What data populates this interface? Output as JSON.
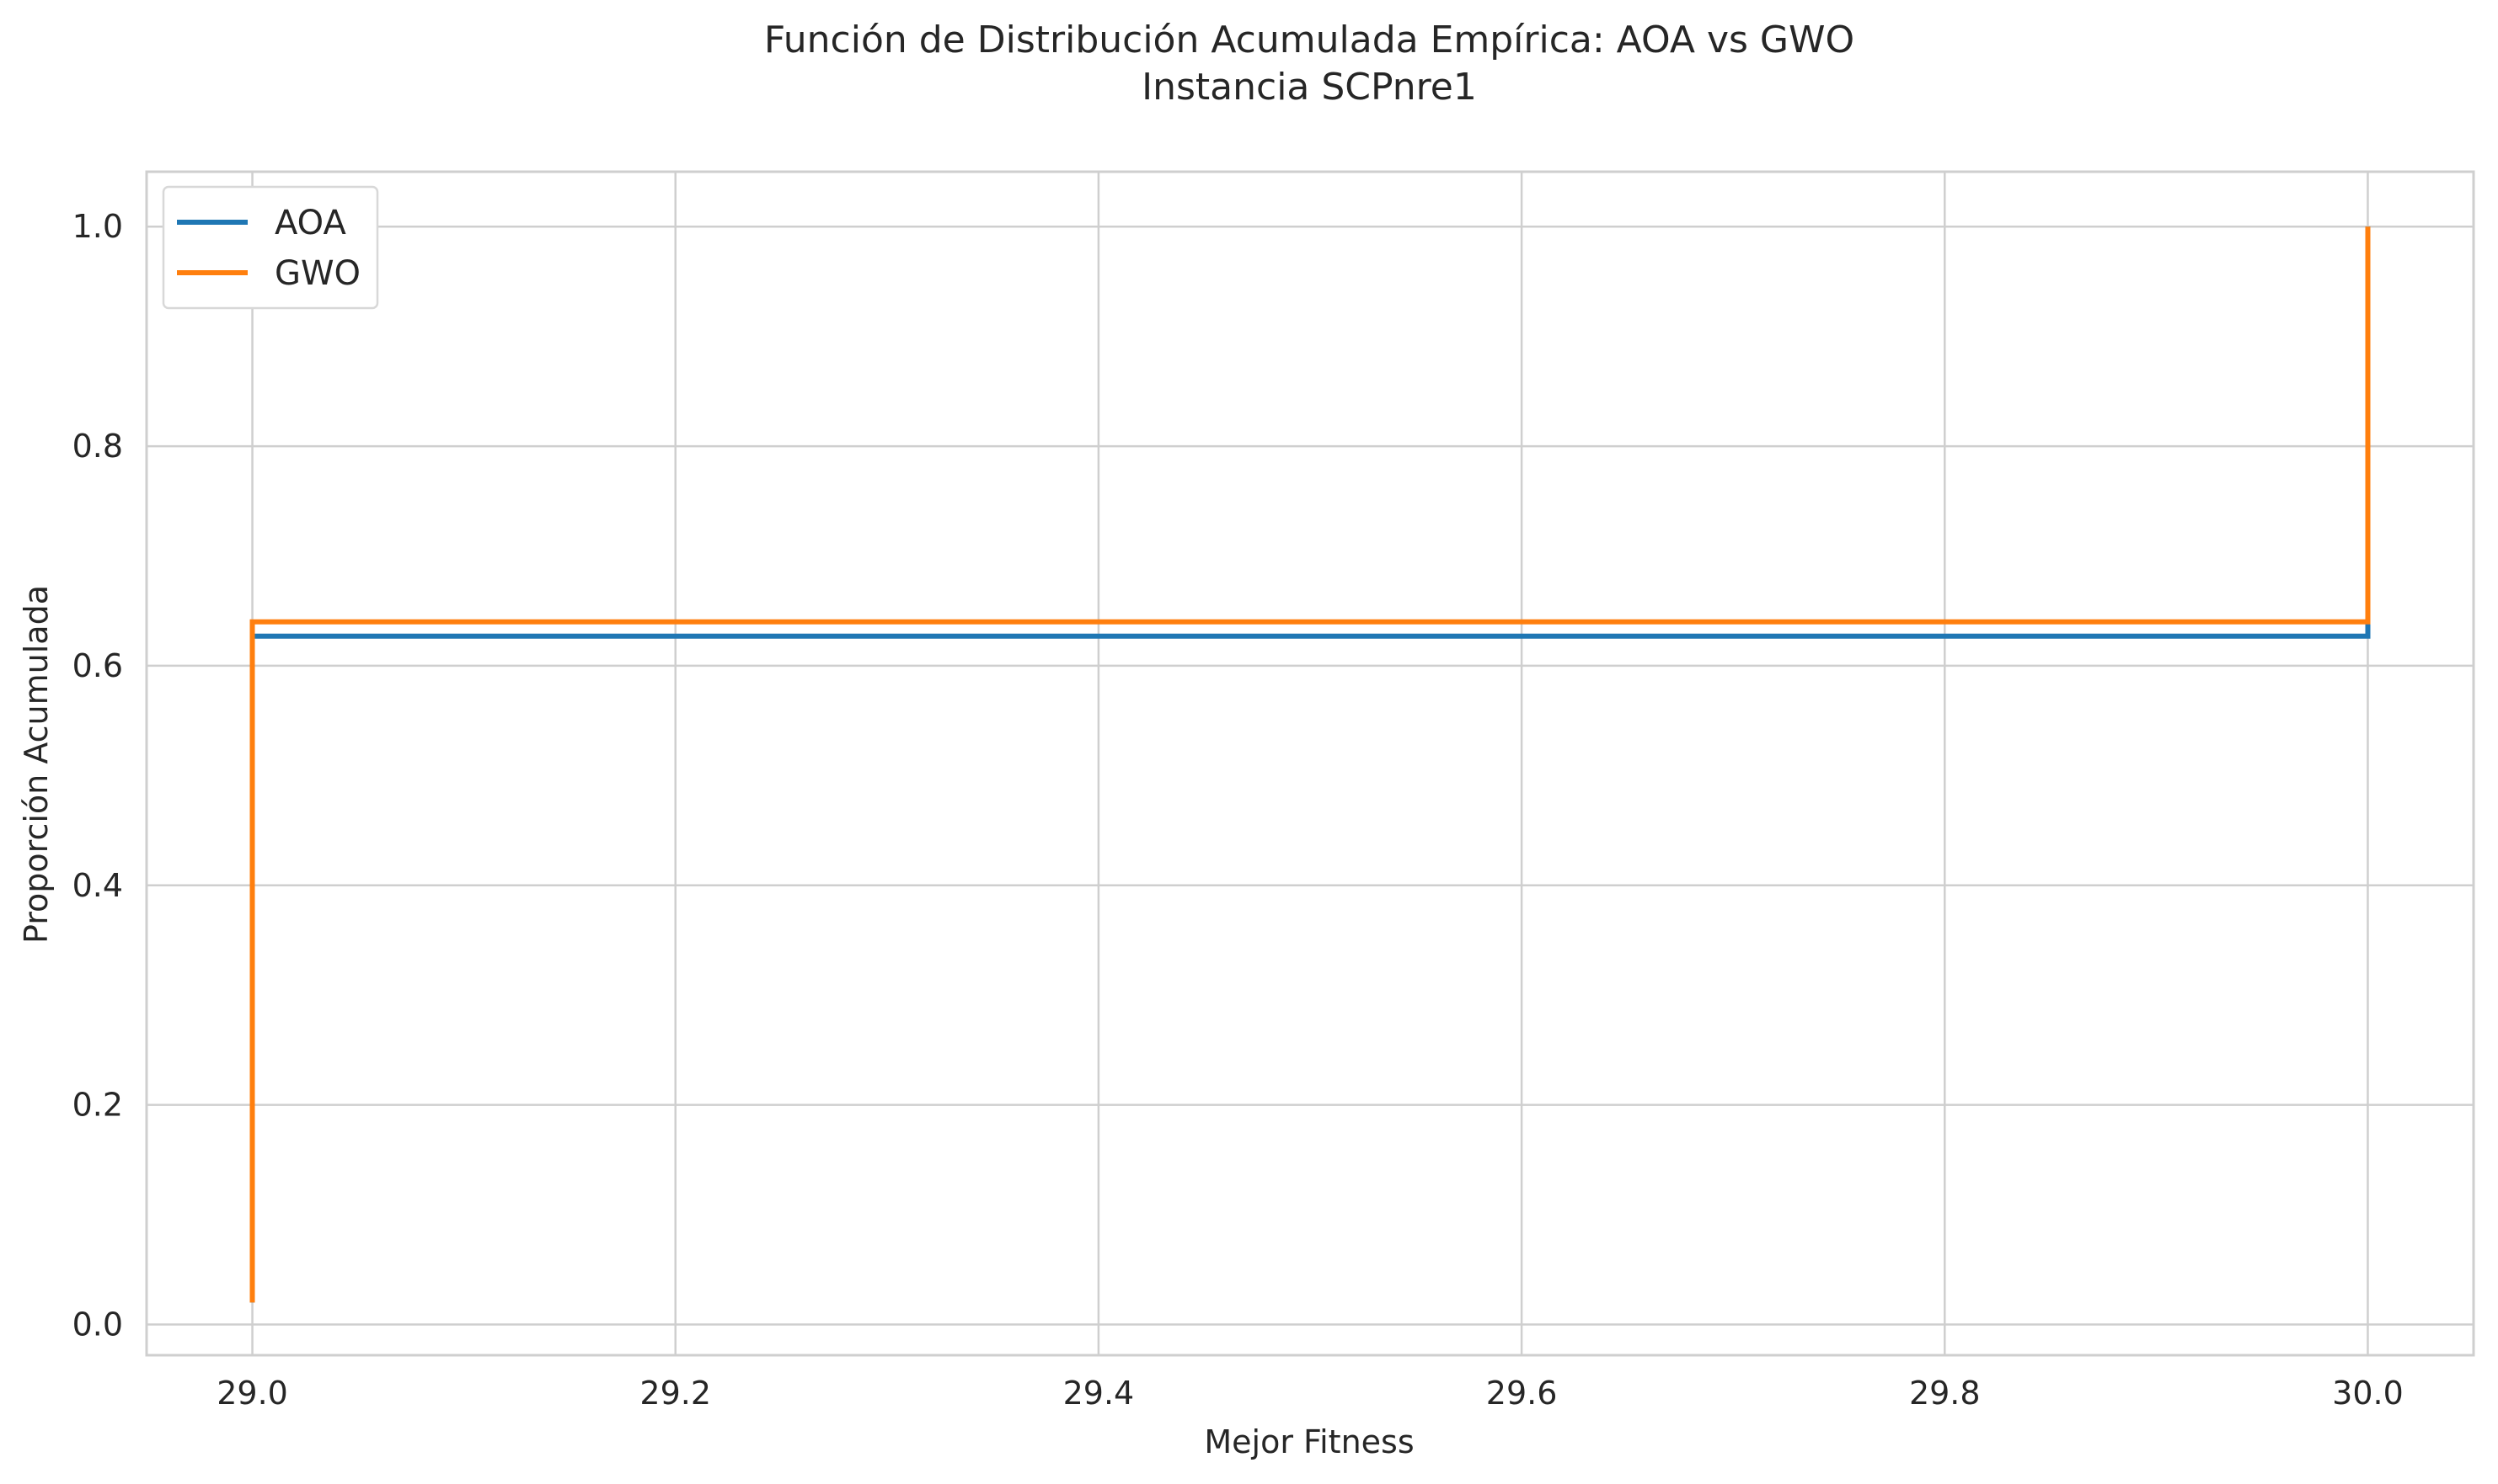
{
  "chart_data": {
    "type": "line",
    "title": "Función de Distribución Acumulada Empírica: AOA vs GWO",
    "subtitle": "Instancia SCPnre1",
    "xlabel": "Mejor Fitness",
    "ylabel": "Proporción Acumulada",
    "xlim": [
      28.95,
      30.05
    ],
    "ylim": [
      -0.028,
      1.05
    ],
    "x_ticks": [
      29.0,
      29.2,
      29.4,
      29.6,
      29.8,
      30.0
    ],
    "x_tick_labels": [
      "29.0",
      "29.2",
      "29.4",
      "29.6",
      "29.8",
      "30.0"
    ],
    "y_ticks": [
      0.0,
      0.2,
      0.4,
      0.6,
      0.8,
      1.0
    ],
    "y_tick_labels": [
      "0.0",
      "0.2",
      "0.4",
      "0.6",
      "0.8",
      "1.0"
    ],
    "grid": true,
    "legend_position": "top-left",
    "series": [
      {
        "name": "AOA",
        "color": "#1f77b4",
        "step": "post",
        "points": [
          [
            29.0,
            0.02
          ],
          [
            29.0,
            0.627
          ],
          [
            30.0,
            0.627
          ],
          [
            30.0,
            1.0
          ]
        ]
      },
      {
        "name": "GWO",
        "color": "#ff7f0e",
        "step": "post",
        "points": [
          [
            29.0,
            0.02
          ],
          [
            29.0,
            0.64
          ],
          [
            30.0,
            0.64
          ],
          [
            30.0,
            1.0
          ]
        ]
      }
    ]
  }
}
